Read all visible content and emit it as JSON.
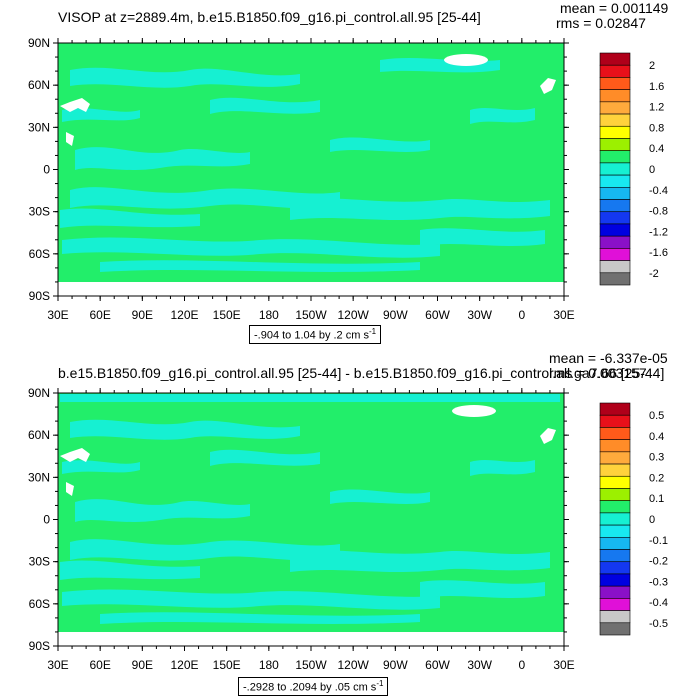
{
  "panels": [
    {
      "title": "VISOP at z=2889.4m, b.e15.B1850.f09_g16.pi_control.all.95 [25-44]",
      "mean_text": "mean = 0.001149",
      "rms_text": "rms = 0.02847",
      "range_text": "-.904 to 1.04 by .2 cm s",
      "range_unit_exp": "-1",
      "colorbar_labels": [
        "2",
        "1.6",
        "1.2",
        "0.8",
        "0.4",
        "0",
        "-0.4",
        "-0.8",
        "-1.2",
        "-1.6",
        "-2"
      ]
    },
    {
      "title": "b.e15.B1850.f09_g16.pi_control.all.95 [25-44] - b.e15.B1850.f09_g16.pi_control.all.ga7.66 [25-44]",
      "mean_text": "mean = -6.337e-05",
      "rms_text": "rms = 0.003157",
      "range_text": "-.2928 to .2094 by .05 cm s",
      "range_unit_exp": "-1",
      "colorbar_labels": [
        "0.5",
        "0.4",
        "0.3",
        "0.2",
        "0.1",
        "0",
        "-0.1",
        "-0.2",
        "-0.3",
        "-0.4",
        "-0.5"
      ]
    }
  ],
  "axes": {
    "lat_labels": [
      "90N",
      "60N",
      "30N",
      "0",
      "30S",
      "60S",
      "90S"
    ],
    "lon_labels": [
      "30E",
      "60E",
      "90E",
      "120E",
      "150E",
      "180",
      "150W",
      "120W",
      "90W",
      "60W",
      "30W",
      "0",
      "30E"
    ]
  },
  "colors": {
    "ocean_main": "#22ee6a",
    "ocean_light": "#16f0d2",
    "land": "#ffffff",
    "colorbar": [
      "#b0001a",
      "#e8101a",
      "#ff5a1a",
      "#ff8c28",
      "#ffaa3c",
      "#ffd23c",
      "#ffff00",
      "#9cf000",
      "#22ee6a",
      "#16f0d2",
      "#18e8f0",
      "#16b8f0",
      "#1678f0",
      "#1438f0",
      "#0000e0",
      "#8a10c8",
      "#e010d8",
      "#c8c8c8",
      "#707070"
    ]
  }
}
